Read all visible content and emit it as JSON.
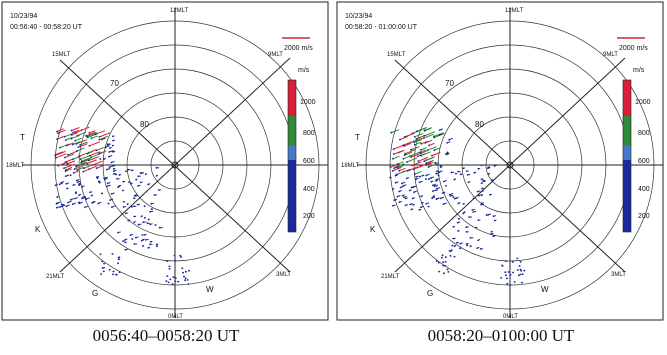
{
  "panels": [
    {
      "date": "10/23/94",
      "interval": "00:56:40 - 00:58:20 UT",
      "caption": "0056:40–0058:20 UT",
      "scale_label": "2000 m/s",
      "unit": "m/s",
      "colorbar_ticks": [
        "1000",
        "800",
        "600",
        "400",
        "200"
      ],
      "lat_labels": [
        "70",
        "80"
      ],
      "mlt_labels": [
        "12MLT",
        "15MLT",
        "9MLT",
        "18MLT",
        "21MLT",
        "3MLT",
        "0MLT"
      ],
      "station_labels": [
        "T",
        "K",
        "G",
        "W"
      ]
    },
    {
      "date": "10/23/94",
      "interval": "00:58:20 - 01:00:00 UT",
      "caption": "0058:20–0100:00 UT",
      "scale_label": "2000 m/s",
      "unit": "m/s",
      "colorbar_ticks": [
        "1000",
        "800",
        "600",
        "400",
        "200"
      ],
      "lat_labels": [
        "70",
        "80"
      ],
      "mlt_labels": [
        "12MLT",
        "15MLT",
        "9MLT",
        "18MLT",
        "21MLT",
        "3MLT",
        "0MLT"
      ],
      "station_labels": [
        "T",
        "K",
        "G",
        "W"
      ]
    }
  ],
  "colors": {
    "red": "#d8203a",
    "green": "#2e8b3a",
    "blue": "#1a2a9c",
    "line": "#222222"
  }
}
